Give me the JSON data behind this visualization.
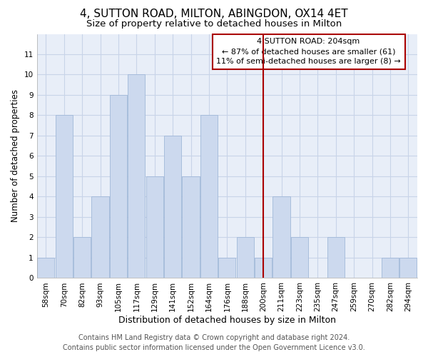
{
  "title": "4, SUTTON ROAD, MILTON, ABINGDON, OX14 4ET",
  "subtitle": "Size of property relative to detached houses in Milton",
  "xlabel": "Distribution of detached houses by size in Milton",
  "ylabel": "Number of detached properties",
  "categories": [
    "58sqm",
    "70sqm",
    "82sqm",
    "93sqm",
    "105sqm",
    "117sqm",
    "129sqm",
    "141sqm",
    "152sqm",
    "164sqm",
    "176sqm",
    "188sqm",
    "200sqm",
    "211sqm",
    "223sqm",
    "235sqm",
    "247sqm",
    "259sqm",
    "270sqm",
    "282sqm",
    "294sqm"
  ],
  "values": [
    1,
    8,
    2,
    4,
    9,
    10,
    5,
    7,
    5,
    8,
    1,
    2,
    1,
    4,
    2,
    0,
    2,
    0,
    0,
    1,
    1
  ],
  "bar_color": "#ccd9ee",
  "bar_edge_color": "#a0b8d8",
  "vline_x_index": 12,
  "vline_color": "#aa0000",
  "annotation_text": "4 SUTTON ROAD: 204sqm\n← 87% of detached houses are smaller (61)\n11% of semi-detached houses are larger (8) →",
  "annotation_box_color": "#aa0000",
  "ylim": [
    0,
    12
  ],
  "yticks": [
    0,
    1,
    2,
    3,
    4,
    5,
    6,
    7,
    8,
    9,
    10,
    11,
    12
  ],
  "grid_color": "#c8d4e8",
  "plot_bg_color": "#e8eef8",
  "fig_bg_color": "#ffffff",
  "footer_line1": "Contains HM Land Registry data © Crown copyright and database right 2024.",
  "footer_line2": "Contains public sector information licensed under the Open Government Licence v3.0.",
  "title_fontsize": 11,
  "subtitle_fontsize": 9.5,
  "axis_label_fontsize": 9,
  "tick_fontsize": 7.5,
  "ylabel_fontsize": 8.5,
  "footer_fontsize": 7,
  "ann_fontsize": 8
}
